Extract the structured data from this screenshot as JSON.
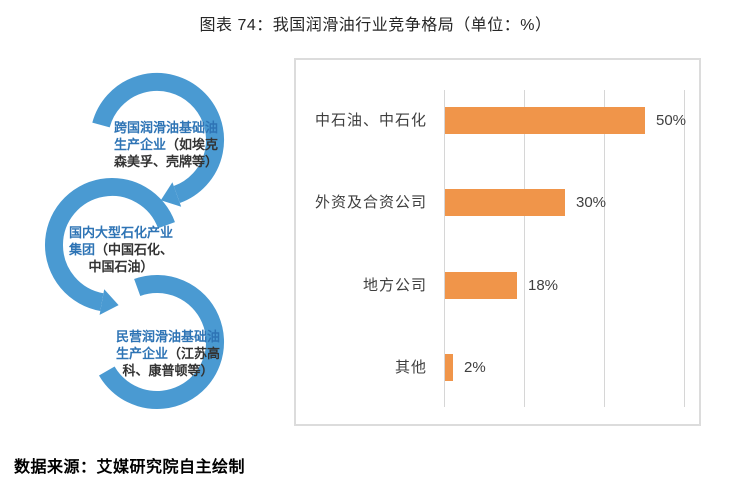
{
  "page": {
    "title": "图表 74：我国润滑油行业竞争格局（单位：%）",
    "source_note": "数据来源：艾媒研究院自主绘制"
  },
  "diagram": {
    "arrow_color": "#4A9AD2",
    "highlight_color": "#2E74B5",
    "text_color": "#333333",
    "nodes": [
      {
        "lines": [
          {
            "blue": "跨国润滑油基础油",
            "dark": ""
          },
          {
            "blue": "生产企业",
            "dark": "（如埃克"
          },
          {
            "blue": "",
            "dark": "森美孚、壳牌等）"
          }
        ]
      },
      {
        "lines": [
          {
            "blue": "国内大型石化产业",
            "dark": ""
          },
          {
            "blue": "集团",
            "dark": "（中国石化、"
          },
          {
            "blue": "",
            "dark": "中国石油）"
          }
        ]
      },
      {
        "lines": [
          {
            "blue": "民营润滑油基础油",
            "dark": ""
          },
          {
            "blue": "生产企业",
            "dark": "（江苏高"
          },
          {
            "blue": "",
            "dark": "科、康普顿等）"
          }
        ]
      }
    ]
  },
  "chart_data": {
    "type": "bar",
    "orientation": "horizontal",
    "title": "图表 74：我国润滑油行业竞争格局（单位：%）",
    "unit": "%",
    "categories": [
      "中石油、中石化",
      "外资及合资公司",
      "地方公司",
      "其他"
    ],
    "values": [
      50,
      30,
      18,
      2
    ],
    "value_labels": [
      "50%",
      "30%",
      "18%",
      "2%"
    ],
    "xlim": [
      0,
      60
    ],
    "xticks": [
      0,
      20,
      40,
      60
    ],
    "grid": "vertical",
    "legend": "none",
    "bar_color": "#F0954A",
    "label_color": "#3F3F3F",
    "gridline_color": "#D6D6D6"
  }
}
